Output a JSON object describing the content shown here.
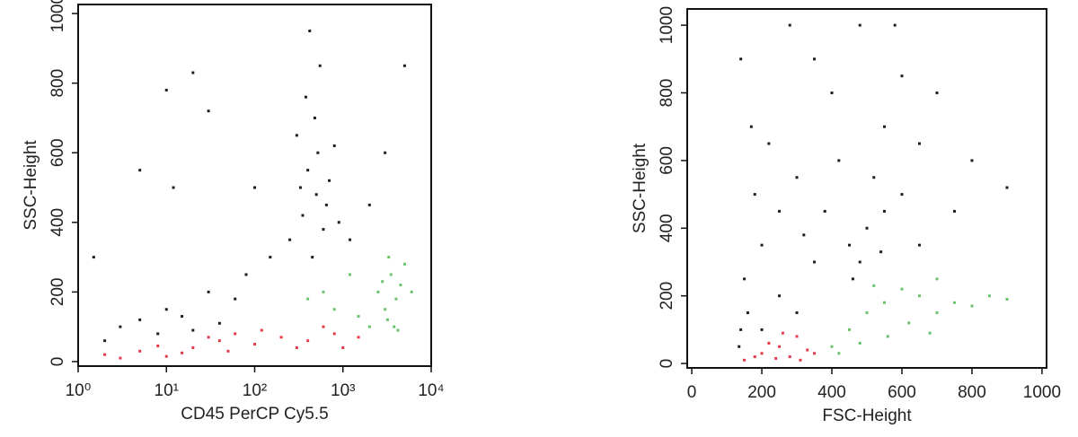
{
  "chart_data": [
    {
      "type": "scatter",
      "xlabel": "CD45 PerCP Cy5.5",
      "ylabel": "SSC-Height",
      "xscale": "log",
      "xlim": [
        1,
        10000
      ],
      "ylim": [
        -13,
        1026
      ],
      "xticks": [
        {
          "value": 1,
          "label": "10⁰"
        },
        {
          "value": 10,
          "label": "10¹"
        },
        {
          "value": 100,
          "label": "10²"
        },
        {
          "value": 1000,
          "label": "10³"
        },
        {
          "value": 10000,
          "label": "10⁴"
        }
      ],
      "yticks": [
        0,
        200,
        400,
        600,
        800,
        1000
      ],
      "series": [
        {
          "color": "#1e1e1e",
          "x": [
            300,
            400,
            500,
            350,
            600,
            450,
            700,
            380,
            550,
            420,
            800,
            250,
            650,
            900,
            520,
            330,
            480,
            1200,
            2000,
            3000,
            5000,
            150,
            80,
            30,
            10,
            5,
            3,
            8,
            15,
            20,
            2,
            40,
            60,
            5,
            10,
            30,
            1.5,
            100,
            12,
            20
          ],
          "y": [
            650,
            550,
            480,
            420,
            380,
            300,
            520,
            760,
            850,
            950,
            620,
            350,
            450,
            400,
            600,
            500,
            700,
            350,
            450,
            600,
            850,
            300,
            250,
            200,
            150,
            120,
            100,
            80,
            130,
            90,
            60,
            110,
            180,
            550,
            780,
            720,
            300,
            500,
            500,
            830
          ]
        },
        {
          "color": "#e8394b",
          "x": [
            2,
            5,
            10,
            20,
            40,
            60,
            100,
            200,
            400,
            800,
            1500,
            3,
            8,
            15,
            30,
            50,
            120,
            300,
            600,
            1000
          ],
          "y": [
            20,
            30,
            15,
            40,
            60,
            80,
            50,
            70,
            60,
            80,
            70,
            10,
            45,
            25,
            70,
            30,
            90,
            40,
            100,
            40
          ]
        },
        {
          "color": "#6cc26c",
          "x": [
            2500,
            3000,
            3500,
            4000,
            4500,
            2000,
            3200,
            5000,
            2800,
            3800,
            600,
            800,
            1200,
            400,
            1500,
            6000,
            3300,
            4200
          ],
          "y": [
            200,
            150,
            250,
            180,
            220,
            100,
            120,
            280,
            230,
            100,
            200,
            150,
            250,
            180,
            130,
            200,
            300,
            90
          ]
        }
      ]
    },
    {
      "type": "scatter",
      "xlabel": "FSC-Height",
      "ylabel": "SSC-Height",
      "xscale": "linear",
      "xlim": [
        -13,
        1013
      ],
      "ylim": [
        -13,
        1048
      ],
      "xticks": [
        0,
        200,
        400,
        600,
        800,
        1000
      ],
      "yticks": [
        0,
        200,
        400,
        600,
        800,
        1000
      ],
      "series": [
        {
          "color": "#1e1e1e",
          "x": [
            500,
            450,
            550,
            480,
            520,
            600,
            420,
            380,
            350,
            300,
            250,
            200,
            150,
            140,
            135,
            160,
            200,
            250,
            300,
            550,
            650,
            700,
            800,
            600,
            400,
            350,
            280,
            900,
            750,
            650,
            170,
            220,
            480,
            580,
            140,
            180,
            320,
            460,
            540
          ],
          "y": [
            400,
            350,
            450,
            300,
            550,
            500,
            600,
            450,
            300,
            550,
            450,
            350,
            250,
            100,
            50,
            150,
            100,
            200,
            150,
            700,
            650,
            800,
            600,
            850,
            800,
            900,
            1000,
            520,
            450,
            350,
            700,
            650,
            1000,
            1000,
            900,
            500,
            380,
            250,
            330
          ]
        },
        {
          "color": "#e8394b",
          "x": [
            150,
            200,
            250,
            300,
            280,
            220,
            330,
            180,
            260,
            310,
            350,
            240
          ],
          "y": [
            10,
            30,
            50,
            80,
            20,
            60,
            40,
            20,
            90,
            10,
            30,
            15
          ]
        },
        {
          "color": "#6cc26c",
          "x": [
            400,
            450,
            500,
            550,
            600,
            650,
            700,
            620,
            560,
            480,
            700,
            750,
            800,
            850,
            900,
            520,
            420,
            680
          ],
          "y": [
            50,
            100,
            150,
            180,
            220,
            200,
            150,
            120,
            80,
            60,
            250,
            180,
            170,
            200,
            190,
            230,
            30,
            90
          ]
        }
      ]
    }
  ]
}
